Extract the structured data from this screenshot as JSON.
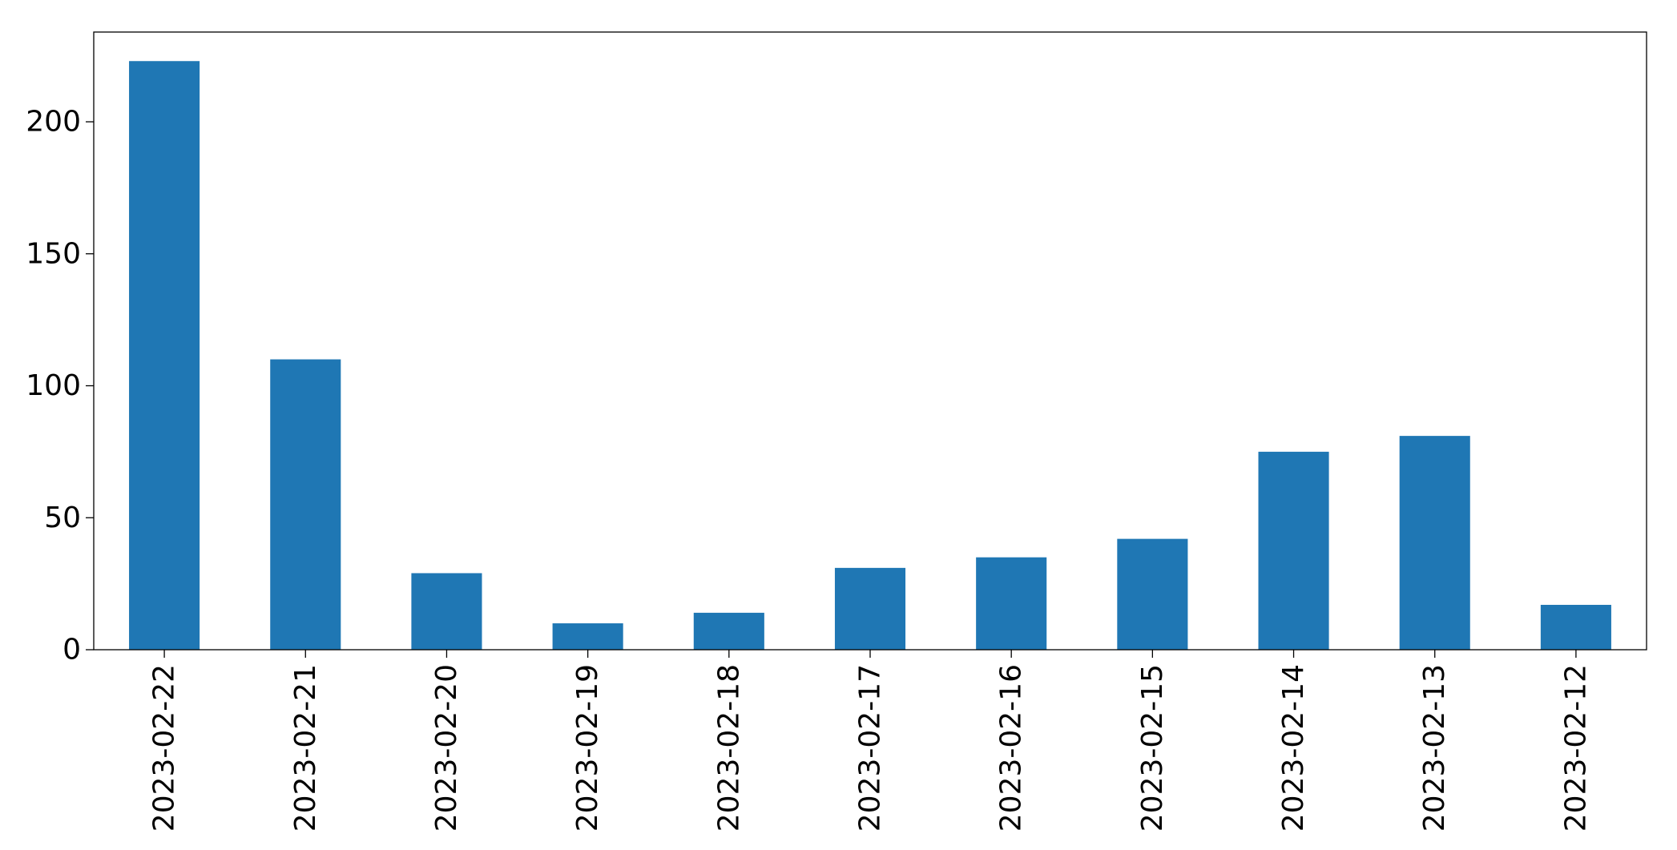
{
  "chart_data": {
    "type": "bar",
    "title": "",
    "xlabel": "",
    "ylabel": "",
    "categories": [
      "2023-02-22",
      "2023-02-21",
      "2023-02-20",
      "2023-02-19",
      "2023-02-18",
      "2023-02-17",
      "2023-02-16",
      "2023-02-15",
      "2023-02-14",
      "2023-02-13",
      "2023-02-12"
    ],
    "values": [
      223,
      110,
      29,
      10,
      14,
      31,
      35,
      42,
      75,
      81,
      17
    ],
    "ylim": [
      0,
      234
    ],
    "yticks": [
      0,
      50,
      100,
      150,
      200
    ],
    "grid": false,
    "legend": "none",
    "bar_color": "#1f77b4"
  }
}
